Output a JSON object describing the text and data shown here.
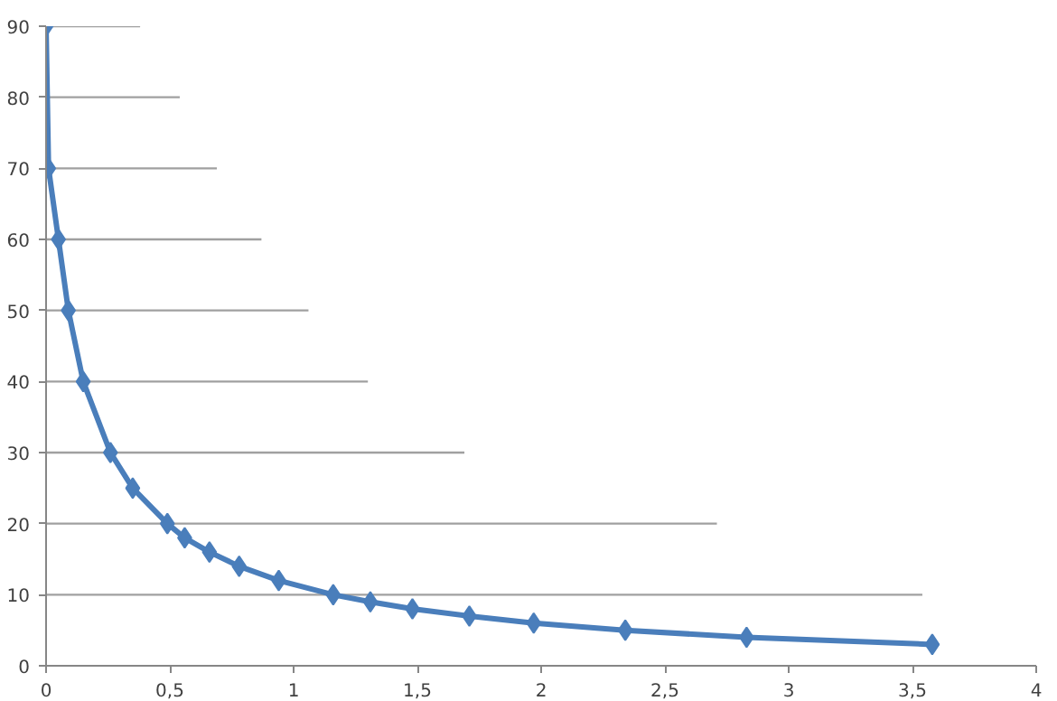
{
  "chart_data": {
    "type": "line",
    "marker": "diamond",
    "line_style": "solid",
    "grid": false,
    "xlim": [
      0,
      4
    ],
    "ylim": [
      0,
      90
    ],
    "xticks": [
      0,
      {
        "value": 0.5,
        "label": "0,5"
      },
      1,
      {
        "value": 1.5,
        "label": "1,5"
      },
      2,
      {
        "value": 2.5,
        "label": "2,5"
      },
      3,
      {
        "value": 3.5,
        "label": "3,5"
      },
      4
    ],
    "yticks": [
      0,
      10,
      20,
      30,
      40,
      50,
      60,
      70,
      80,
      90
    ],
    "series": [
      {
        "type": "line",
        "marker": "none",
        "color": "#a0a0a0",
        "x": [
          0,
          0.38
        ],
        "values": [
          90,
          90
        ]
      },
      {
        "type": "line",
        "marker": "none",
        "color": "#a0a0a0",
        "x": [
          0,
          0.54
        ],
        "values": [
          80,
          80
        ]
      },
      {
        "type": "line",
        "marker": "none",
        "color": "#a0a0a0",
        "x": [
          0,
          0.69
        ],
        "values": [
          70,
          70
        ]
      },
      {
        "type": "line",
        "marker": "none",
        "color": "#a0a0a0",
        "x": [
          0,
          0.87
        ],
        "values": [
          60,
          60
        ]
      },
      {
        "type": "line",
        "marker": "none",
        "color": "#a0a0a0",
        "x": [
          0,
          1.06
        ],
        "values": [
          50,
          50
        ]
      },
      {
        "type": "line",
        "marker": "none",
        "color": "#a0a0a0",
        "x": [
          0,
          1.3
        ],
        "values": [
          40,
          40
        ]
      },
      {
        "type": "line",
        "marker": "none",
        "color": "#a0a0a0",
        "x": [
          0,
          1.69
        ],
        "values": [
          30,
          30
        ]
      },
      {
        "type": "line",
        "marker": "none",
        "color": "#a0a0a0",
        "x": [
          0,
          2.71
        ],
        "values": [
          20,
          20
        ]
      },
      {
        "type": "line",
        "marker": "none",
        "color": "#a0a0a0",
        "x": [
          0,
          3.54
        ],
        "values": [
          10,
          10
        ]
      },
      {
        "color": "#4a7ebb",
        "x": [
          0,
          0.01,
          0.05,
          0.09,
          0.15,
          0.26,
          0.35,
          0.49,
          0.56,
          0.66,
          0.78,
          0.94,
          1.16,
          1.31,
          1.48,
          1.71,
          1.97,
          2.34,
          2.83,
          3.58
        ],
        "values": [
          90,
          70,
          60,
          50,
          40,
          30,
          25,
          20,
          18,
          16,
          14,
          12,
          10,
          9,
          8,
          7,
          6,
          5,
          4,
          3
        ]
      }
    ]
  }
}
